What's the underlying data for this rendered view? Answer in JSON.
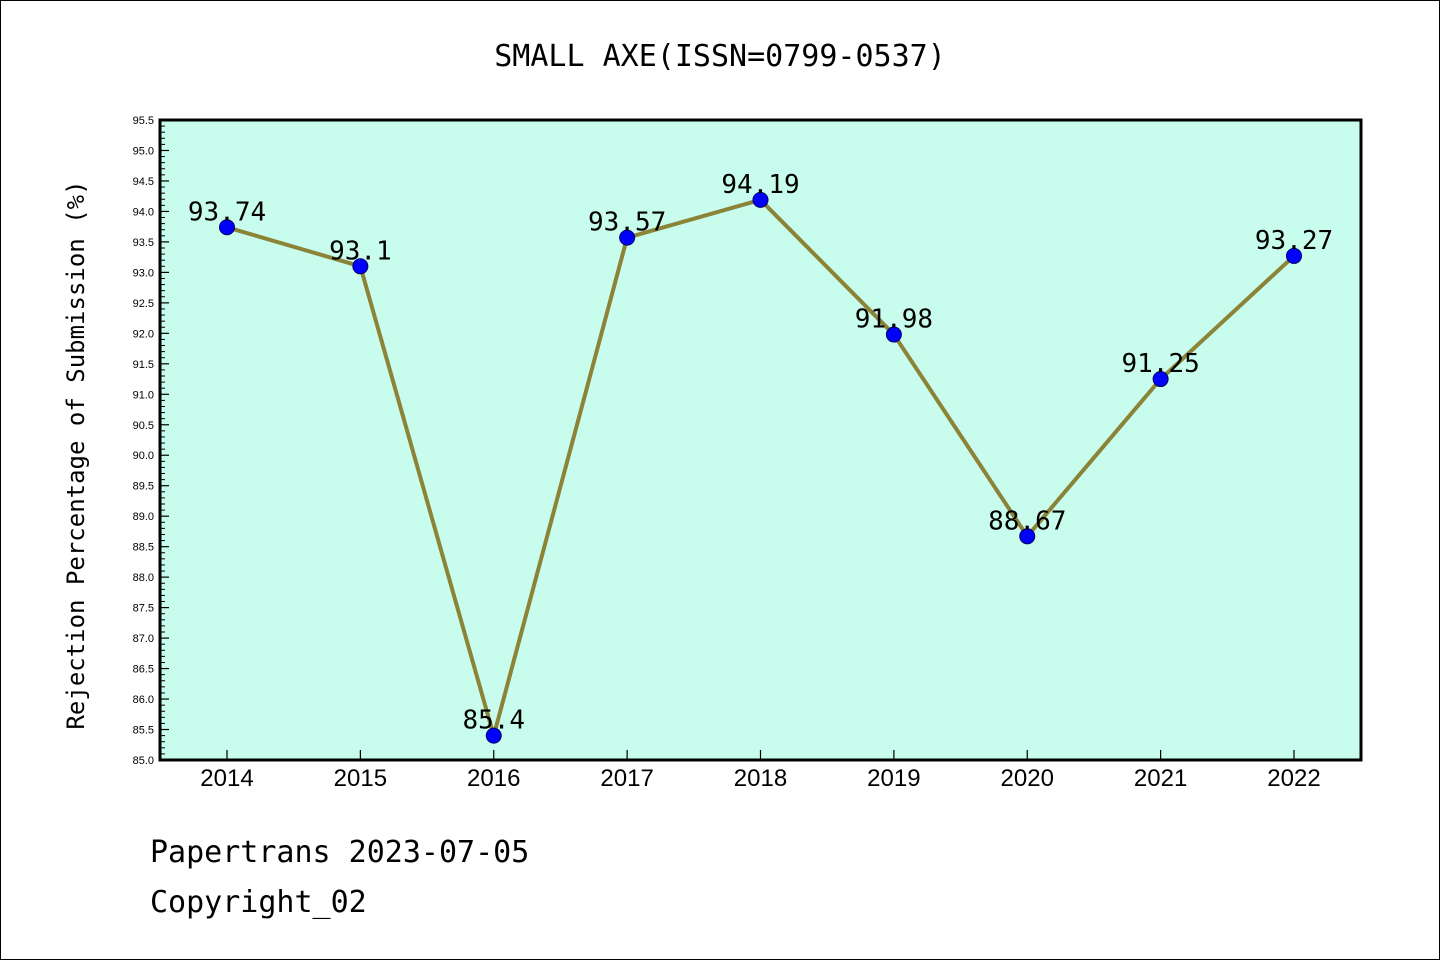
{
  "chart_data": {
    "type": "line",
    "title": "SMALL AXE(ISSN=0799-0537)",
    "xlabel": "",
    "ylabel": "Rejection Percentage of Submission (%)",
    "categories": [
      "2014",
      "2015",
      "2016",
      "2017",
      "2018",
      "2019",
      "2020",
      "2021",
      "2022"
    ],
    "series": [
      {
        "values": [
          93.74,
          93.1,
          85.4,
          93.57,
          94.19,
          91.98,
          88.67,
          91.25,
          93.27
        ],
        "data_labels": [
          "93.74",
          "93.1",
          "85.4",
          "93.57",
          "94.19",
          "91.98",
          "88.67",
          "91.25",
          "93.27"
        ]
      }
    ],
    "ylim": [
      85.0,
      95.5
    ],
    "ytick_labels": [
      "85.0",
      "85.5",
      "86.0",
      "86.5",
      "87.0",
      "87.5",
      "88.0",
      "88.5",
      "89.0",
      "89.5",
      "90.0",
      "90.5",
      "91.0",
      "91.5",
      "92.0",
      "92.5",
      "93.0",
      "93.5",
      "94.0",
      "94.5",
      "95.0",
      "95.5"
    ],
    "grid": false,
    "colors": {
      "plot_background": "#c8fced",
      "line": "#8b8437",
      "marker": "#0000ff",
      "marker_edge": "#000066"
    }
  },
  "footer": {
    "line1": "Papertrans 2023-07-05",
    "line2": "Copyright_02"
  }
}
